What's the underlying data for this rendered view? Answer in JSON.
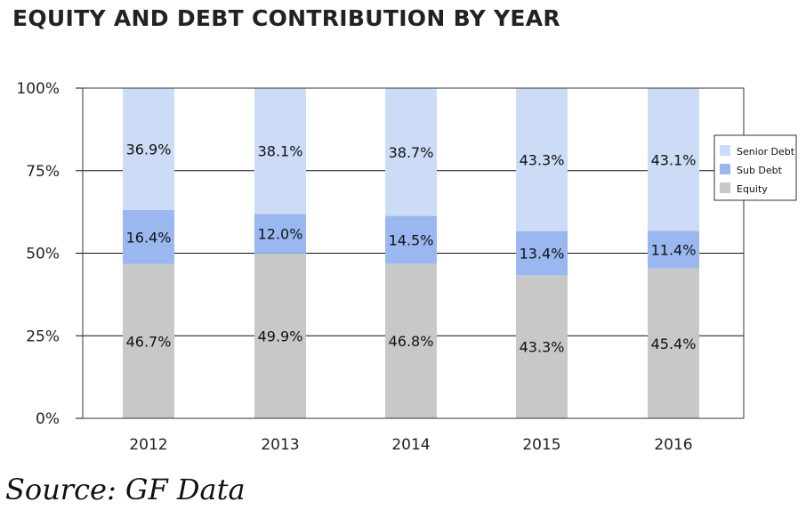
{
  "title": "EQUITY AND DEBT CONTRIBUTION BY YEAR",
  "source": "Source: GF Data",
  "chart_data": {
    "type": "bar",
    "stacked": true,
    "title": "EQUITY AND DEBT CONTRIBUTION BY YEAR",
    "categories": [
      "2012",
      "2013",
      "2014",
      "2015",
      "2016"
    ],
    "series": [
      {
        "name": "Equity",
        "values": [
          46.7,
          49.9,
          46.8,
          43.3,
          45.4
        ],
        "labels": [
          "46.7%",
          "49.9%",
          "46.8%",
          "43.3%",
          "45.4%"
        ],
        "color": "#c8c8c8"
      },
      {
        "name": "Sub Debt",
        "values": [
          16.4,
          12.0,
          14.5,
          13.4,
          11.4
        ],
        "labels": [
          "16.4%",
          "12.0%",
          "14.5%",
          "13.4%",
          "11.4%"
        ],
        "color": "#9ab8ef"
      },
      {
        "name": "Senior Debt",
        "values": [
          36.9,
          38.1,
          38.7,
          43.3,
          43.1
        ],
        "labels": [
          "36.9%",
          "38.1%",
          "38.7%",
          "43.3%",
          "43.1%"
        ],
        "color": "#ccdcf6"
      }
    ],
    "ylim": [
      0,
      100
    ],
    "yticks": [
      "0%",
      "25%",
      "50%",
      "75%",
      "100%"
    ],
    "grid": true,
    "legend_position": "right",
    "legend_order": [
      "Senior Debt",
      "Sub Debt",
      "Equity"
    ]
  }
}
